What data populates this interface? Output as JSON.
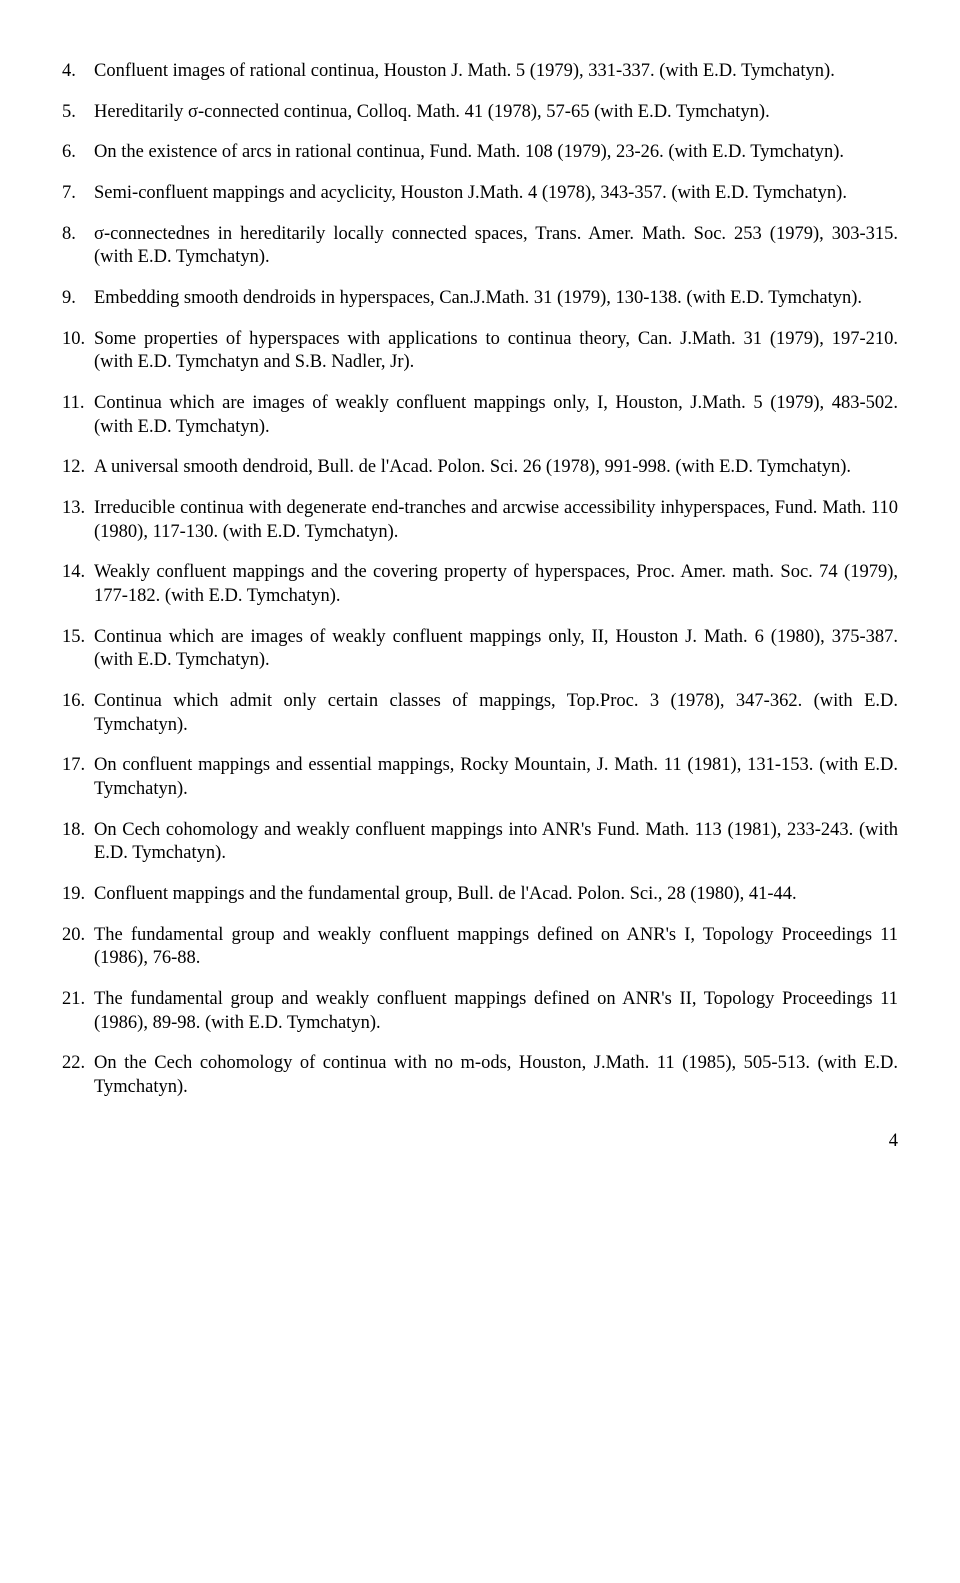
{
  "font_family": "Times New Roman",
  "font_size_pt": 14,
  "text_color": "#000000",
  "background_color": "#ffffff",
  "page_number": "4",
  "entries": [
    {
      "n": "4.",
      "text": "Confluent images of rational continua, Houston J. Math. 5 (1979), 331-337. (with E.D. Tymchatyn)."
    },
    {
      "n": "5.",
      "text": "Hereditarily σ-connected continua, Colloq. Math. 41 (1978), 57-65 (with E.D. Tymchatyn)."
    },
    {
      "n": "6.",
      "text": "On the existence of arcs in rational continua, Fund. Math. 108 (1979), 23-26. (with E.D. Tymchatyn)."
    },
    {
      "n": "7.",
      "text": "Semi-confluent mappings and acyclicity, Houston J.Math. 4 (1978), 343-357. (with E.D. Tymchatyn)."
    },
    {
      "n": "8.",
      "text": "σ-connectednes in hereditarily locally connected spaces, Trans. Amer. Math. Soc. 253 (1979), 303-315. (with E.D. Tymchatyn)."
    },
    {
      "n": "9.",
      "text": "Embedding smooth dendroids in hyperspaces, Can.J.Math. 31 (1979), 130-138. (with E.D. Tymchatyn)."
    },
    {
      "n": "10.",
      "text": "Some properties of hyperspaces with applications to continua theory, Can. J.Math. 31 (1979), 197-210. (with E.D. Tymchatyn and S.B. Nadler, Jr)."
    },
    {
      "n": "11.",
      "text": "Continua which are images of weakly confluent mappings only, I, Houston, J.Math. 5 (1979), 483-502. (with E.D. Tymchatyn)."
    },
    {
      "n": "12.",
      "text": "A universal smooth dendroid, Bull. de l'Acad. Polon. Sci. 26 (1978), 991-998. (with E.D. Tymchatyn)."
    },
    {
      "n": "13.",
      "text": "Irreducible continua with degenerate end-tranches and arcwise accessibility inhyperspaces, Fund. Math. 110 (1980), 117-130. (with E.D. Tymchatyn)."
    },
    {
      "n": "14.",
      "text": "Weakly confluent mappings and the covering property of hyperspaces, Proc. Amer. math. Soc. 74 (1979), 177-182. (with E.D. Tymchatyn)."
    },
    {
      "n": "15.",
      "text": "Continua which are images of weakly confluent mappings only, II, Houston J. Math. 6 (1980), 375-387. (with E.D. Tymchatyn)."
    },
    {
      "n": "16.",
      "text": "Continua which admit only certain classes of mappings, Top.Proc. 3 (1978), 347-362. (with E.D. Tymchatyn)."
    },
    {
      "n": "17.",
      "text": "On confluent mappings and essential mappings, Rocky Mountain, J. Math. 11 (1981), 131-153. (with E.D. Tymchatyn)."
    },
    {
      "n": "18.",
      "text": "On Cech cohomology and weakly confluent mappings into ANR's Fund. Math. 113 (1981), 233-243. (with E.D. Tymchatyn)."
    },
    {
      "n": "19.",
      "text": "Confluent mappings and the fundamental group, Bull. de l'Acad. Polon. Sci., 28 (1980), 41-44."
    },
    {
      "n": "20.",
      "text": "The fundamental group and weakly confluent mappings defined on ANR's I, Topology Proceedings 11 (1986), 76-88."
    },
    {
      "n": "21.",
      "text": "The fundamental group and weakly confluent mappings defined on ANR's II, Topology Proceedings 11 (1986), 89-98. (with E.D. Tymchatyn)."
    },
    {
      "n": "22.",
      "text": "On the Cech cohomology of continua with no m-ods, Houston, J.Math. 11 (1985), 505-513. (with E.D. Tymchatyn)."
    }
  ]
}
